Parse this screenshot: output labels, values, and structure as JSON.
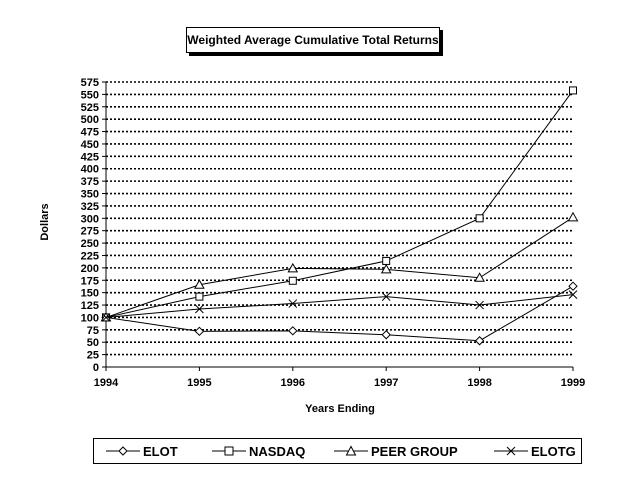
{
  "chart_data": {
    "type": "line",
    "title": "Weighted Average Cumulative Total Returns",
    "xlabel": "Years Ending",
    "ylabel": "Dollars",
    "categories": [
      "1994",
      "1995",
      "1996",
      "1997",
      "1998",
      "1999"
    ],
    "ylim": [
      0,
      575
    ],
    "ytick_step": 25,
    "grid": true,
    "legend_position": "bottom",
    "series": [
      {
        "name": "ELOT",
        "marker": "diamond",
        "values": [
          100,
          72,
          73,
          65,
          53,
          163
        ]
      },
      {
        "name": "NASDAQ",
        "marker": "square",
        "values": [
          100,
          142,
          174,
          214,
          300,
          558
        ]
      },
      {
        "name": "PEER GROUP",
        "marker": "triangle",
        "values": [
          100,
          166,
          199,
          197,
          180,
          302
        ]
      },
      {
        "name": "ELOTG",
        "marker": "x",
        "values": [
          100,
          117,
          128,
          142,
          125,
          146
        ]
      }
    ]
  }
}
